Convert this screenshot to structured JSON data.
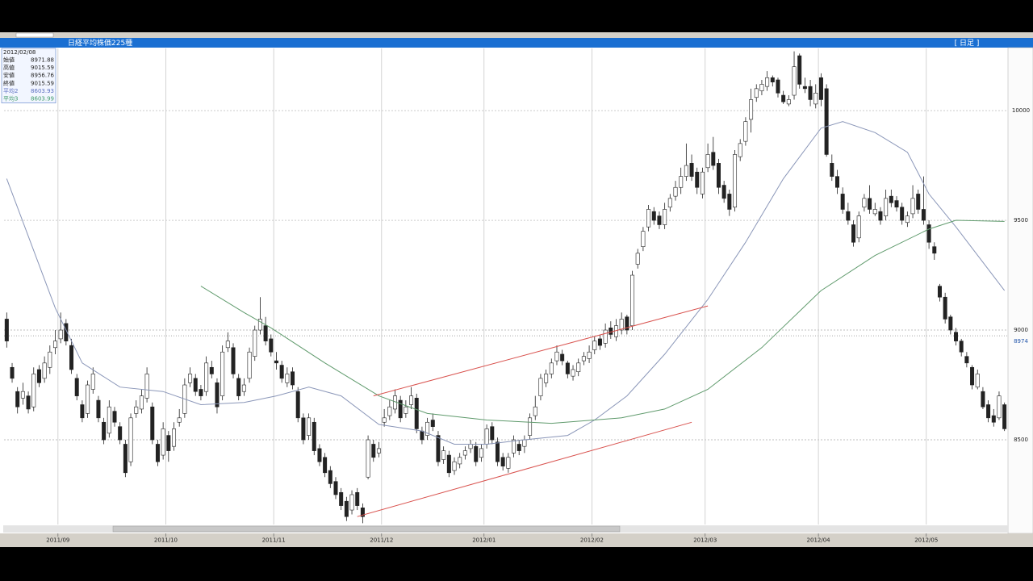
{
  "chart_data": {
    "type": "candlestick",
    "title": "日経平均株価225種",
    "period_label": "[ 日足 ]",
    "categories": [
      null,
      null,
      null,
      null,
      null,
      null,
      null,
      null,
      null,
      null,
      "2011/09",
      null,
      null,
      null,
      null,
      null,
      null,
      null,
      null,
      null,
      null,
      null,
      null,
      null,
      null,
      null,
      null,
      null,
      null,
      null,
      "2011/10",
      null,
      null,
      null,
      null,
      null,
      null,
      null,
      null,
      null,
      null,
      null,
      null,
      null,
      null,
      null,
      null,
      null,
      null,
      null,
      "2011/11",
      null,
      null,
      null,
      null,
      null,
      null,
      null,
      null,
      null,
      null,
      null,
      null,
      null,
      null,
      null,
      null,
      null,
      null,
      null,
      "2011/12",
      null,
      null,
      null,
      null,
      null,
      null,
      null,
      null,
      null,
      null,
      null,
      null,
      null,
      null,
      null,
      null,
      null,
      null,
      "2012/01",
      null,
      null,
      null,
      null,
      null,
      null,
      null,
      null,
      null,
      null,
      null,
      null,
      null,
      null,
      null,
      null,
      null,
      null,
      null,
      "2012/02",
      null,
      null,
      null,
      null,
      null,
      null,
      null,
      null,
      null,
      null,
      null,
      null,
      null,
      null,
      null,
      null,
      null,
      null,
      null,
      null,
      "2012/03",
      null,
      null,
      null,
      null,
      null,
      null,
      null,
      null,
      null,
      null,
      null,
      null,
      null,
      null,
      null,
      null,
      null,
      null,
      null,
      null,
      "2012/04",
      null,
      null,
      null,
      null,
      null,
      null,
      null,
      null,
      null,
      null,
      null,
      null,
      null,
      null,
      null,
      null,
      null,
      null,
      null,
      "2012/05",
      null,
      null,
      null,
      null,
      null,
      null,
      null,
      null,
      null,
      null,
      null,
      null,
      null,
      null
    ],
    "open": [
      9050,
      8830,
      8720,
      8690,
      8700,
      8650,
      8820,
      8780,
      8830,
      8920,
      8960,
      9030,
      8930,
      8780,
      8660,
      8620,
      8730,
      8680,
      8580,
      8530,
      8630,
      8560,
      8480,
      8400,
      8620,
      8640,
      8690,
      8650,
      8480,
      8430,
      8520,
      8470,
      8580,
      8620,
      8760,
      8780,
      8730,
      8720,
      8830,
      8760,
      8700,
      8920,
      8920,
      8780,
      8720,
      8780,
      8880,
      9000,
      9020,
      8960,
      8860,
      8840,
      8760,
      8810,
      8720,
      8600,
      8520,
      8580,
      8460,
      8420,
      8360,
      8310,
      8260,
      8220,
      8180,
      8260,
      8190,
      8330,
      8480,
      8440,
      8580,
      8610,
      8640,
      8680,
      8620,
      8660,
      8690,
      8540,
      8520,
      8590,
      8520,
      8410,
      8430,
      8360,
      8390,
      8430,
      8460,
      8470,
      8420,
      8480,
      8560,
      8490,
      8420,
      8370,
      8440,
      8480,
      8470,
      8520,
      8610,
      8700,
      8760,
      8800,
      8860,
      8890,
      8850,
      8790,
      8810,
      8860,
      8870,
      8910,
      8960,
      8940,
      9010,
      8970,
      9000,
      9060,
      9020,
      9300,
      9380,
      9470,
      9540,
      9520,
      9480,
      9560,
      9610,
      9650,
      9700,
      9760,
      9720,
      9620,
      9740,
      9810,
      9760,
      9660,
      9620,
      9560,
      9790,
      9860,
      9960,
      10060,
      10090,
      10110,
      10150,
      10140,
      10070,
      10030,
      10070,
      10250,
      10110,
      10110,
      10030,
      10150,
      10100,
      9760,
      9700,
      9620,
      9540,
      9480,
      9420,
      9560,
      9600,
      9530,
      9540,
      9520,
      9610,
      9590,
      9560,
      9490,
      9530,
      9620,
      9550,
      9480,
      9380,
      9200,
      9150,
      9060,
      8990,
      8950,
      8880,
      8830,
      8740,
      8720,
      8660,
      8610,
      8600,
      8660
    ],
    "high": [
      9080,
      8850,
      8740,
      8760,
      8720,
      8830,
      8840,
      8880,
      8930,
      9000,
      9080,
      9050,
      8960,
      8800,
      8680,
      8770,
      8830,
      8700,
      8600,
      8680,
      8650,
      8580,
      8500,
      8620,
      8680,
      8730,
      8830,
      8670,
      8500,
      8580,
      8540,
      8580,
      8640,
      8780,
      8830,
      8800,
      8750,
      8880,
      8860,
      8780,
      8930,
      8990,
      8940,
      8800,
      8780,
      8920,
      9020,
      9150,
      9060,
      8980,
      8900,
      8860,
      8830,
      8830,
      8740,
      8620,
      8620,
      8600,
      8480,
      8440,
      8380,
      8330,
      8280,
      8240,
      8270,
      8280,
      8210,
      8520,
      8500,
      8490,
      8640,
      8680,
      8730,
      8700,
      8680,
      8740,
      8710,
      8560,
      8600,
      8620,
      8540,
      8470,
      8450,
      8420,
      8440,
      8470,
      8500,
      8490,
      8480,
      8570,
      8580,
      8510,
      8440,
      8440,
      8520,
      8500,
      8520,
      8620,
      8700,
      8800,
      8820,
      8870,
      8930,
      8910,
      8860,
      8840,
      8870,
      8900,
      8930,
      8970,
      8980,
      9030,
      9040,
      9050,
      9080,
      9070,
      9270,
      9370,
      9470,
      9570,
      9560,
      9540,
      9580,
      9620,
      9680,
      9740,
      9850,
      9800,
      9740,
      9740,
      9850,
      9880,
      9780,
      9680,
      9640,
      9820,
      9870,
      9970,
      10100,
      10120,
      10140,
      10180,
      10160,
      10150,
      10090,
      10070,
      10270,
      10260,
      10150,
      10140,
      10120,
      10170,
      10120,
      9800,
      9730,
      9650,
      9580,
      9500,
      9540,
      9620,
      9660,
      9580,
      9560,
      9640,
      9640,
      9610,
      9580,
      9540,
      9660,
      9640,
      9700,
      9500,
      9400,
      9210,
      9170,
      9070,
      9010,
      8960,
      8900,
      8840,
      8820,
      8740,
      8680,
      8640,
      8720,
      8670
    ],
    "low": [
      8920,
      8760,
      8620,
      8660,
      8620,
      8630,
      8740,
      8760,
      8800,
      8890,
      8940,
      8930,
      8800,
      8680,
      8580,
      8600,
      8710,
      8580,
      8480,
      8510,
      8560,
      8480,
      8330,
      8380,
      8600,
      8620,
      8670,
      8480,
      8380,
      8410,
      8400,
      8450,
      8560,
      8600,
      8740,
      8700,
      8680,
      8700,
      8780,
      8620,
      8680,
      8900,
      8780,
      8680,
      8700,
      8760,
      8860,
      8980,
      8930,
      8880,
      8820,
      8760,
      8740,
      8730,
      8580,
      8480,
      8500,
      8430,
      8380,
      8330,
      8280,
      8230,
      8180,
      8130,
      8160,
      8180,
      8120,
      8320,
      8400,
      8420,
      8560,
      8590,
      8620,
      8580,
      8600,
      8640,
      8530,
      8480,
      8500,
      8540,
      8380,
      8390,
      8330,
      8340,
      8370,
      8410,
      8440,
      8380,
      8400,
      8460,
      8480,
      8380,
      8360,
      8350,
      8420,
      8430,
      8440,
      8500,
      8590,
      8680,
      8740,
      8780,
      8840,
      8840,
      8780,
      8770,
      8790,
      8840,
      8850,
      8890,
      8910,
      8920,
      8960,
      8950,
      8980,
      8980,
      9000,
      9280,
      9360,
      9450,
      9480,
      9460,
      9460,
      9540,
      9590,
      9620,
      9680,
      9680,
      9620,
      9600,
      9720,
      9730,
      9620,
      9580,
      9520,
      9540,
      9770,
      9840,
      9900,
      10040,
      10070,
      10090,
      10110,
      10060,
      10030,
      10020,
      10050,
      10100,
      10080,
      10020,
      10010,
      10020,
      9790,
      9680,
      9620,
      9530,
      9480,
      9380,
      9400,
      9540,
      9530,
      9520,
      9480,
      9500,
      9560,
      9540,
      9480,
      9470,
      9510,
      9530,
      9480,
      9370,
      9320,
      9130,
      9030,
      8980,
      8930,
      8880,
      8830,
      8730,
      8730,
      8640,
      8580,
      8560,
      8590,
      8540
    ],
    "close": [
      8950,
      8780,
      8650,
      8720,
      8640,
      8800,
      8760,
      8850,
      8900,
      8950,
      9000,
      8950,
      8820,
      8700,
      8600,
      8750,
      8800,
      8600,
      8500,
      8650,
      8580,
      8500,
      8350,
      8600,
      8650,
      8700,
      8800,
      8500,
      8400,
      8550,
      8450,
      8550,
      8600,
      8750,
      8800,
      8720,
      8700,
      8850,
      8800,
      8650,
      8900,
      8950,
      8800,
      8700,
      8750,
      8900,
      9000,
      9050,
      8950,
      8900,
      8850,
      8780,
      8800,
      8750,
      8600,
      8500,
      8600,
      8450,
      8400,
      8350,
      8300,
      8250,
      8200,
      8150,
      8250,
      8200,
      8150,
      8500,
      8420,
      8460,
      8600,
      8650,
      8700,
      8600,
      8650,
      8700,
      8550,
      8500,
      8580,
      8560,
      8400,
      8450,
      8350,
      8400,
      8420,
      8450,
      8480,
      8400,
      8460,
      8550,
      8500,
      8400,
      8380,
      8420,
      8500,
      8450,
      8500,
      8600,
      8650,
      8780,
      8800,
      8850,
      8900,
      8860,
      8800,
      8820,
      8850,
      8880,
      8900,
      8950,
      8930,
      9000,
      8980,
      9020,
      9050,
      9000,
      9250,
      9350,
      9450,
      9550,
      9500,
      9480,
      9550,
      9600,
      9650,
      9700,
      9750,
      9700,
      9650,
      9720,
      9800,
      9750,
      9650,
      9600,
      9550,
      9800,
      9850,
      9950,
      10050,
      10100,
      10120,
      10150,
      10130,
      10080,
      10040,
      10050,
      10200,
      10120,
      10100,
      10050,
      10080,
      10050,
      9800,
      9700,
      9650,
      9550,
      9500,
      9400,
      9520,
      9600,
      9550,
      9550,
      9500,
      9600,
      9580,
      9560,
      9500,
      9520,
      9600,
      9550,
      9500,
      9400,
      9350,
      9150,
      9050,
      9000,
      8950,
      8900,
      8850,
      8750,
      8800,
      8650,
      8600,
      8580,
      8700,
      8550
    ],
    "up_color": "#ffffff",
    "down_color": "#222222",
    "moving_averages": [
      {
        "color": "#8a96b8",
        "x": [
          0,
          9,
          14,
          21,
          29,
          36,
          44,
          50,
          56,
          62,
          69,
          77,
          83,
          89,
          96,
          104,
          109,
          115,
          122,
          130,
          137,
          144,
          151,
          155,
          161,
          167,
          171,
          176,
          185
        ],
        "values": [
          9690,
          9100,
          8850,
          8740,
          8720,
          8660,
          8670,
          8700,
          8740,
          8700,
          8570,
          8540,
          8480,
          8480,
          8500,
          8520,
          8590,
          8700,
          8890,
          9140,
          9400,
          9690,
          9920,
          9950,
          9900,
          9810,
          9620,
          9470,
          9180
        ]
      },
      {
        "color": "#5f9a6c",
        "x": [
          36,
          44,
          49,
          59,
          69,
          78,
          89,
          101,
          114,
          122,
          130,
          140,
          151,
          161,
          171,
          176,
          185
        ],
        "values": [
          9200,
          9080,
          9010,
          8850,
          8700,
          8620,
          8590,
          8575,
          8600,
          8640,
          8730,
          8920,
          9180,
          9340,
          9460,
          9500,
          9495
        ]
      }
    ],
    "trendlines": [
      {
        "color": "#d9534f",
        "x": [
          68,
          130
        ],
        "values": [
          8700,
          9110
        ]
      },
      {
        "color": "#d9534f",
        "x": [
          65,
          127
        ],
        "values": [
          8150,
          8580
        ]
      }
    ],
    "ylim": [
      8114,
      10276
    ],
    "yticks": [
      8500,
      9000,
      9500,
      10000
    ],
    "price_marker": 8974,
    "grid": true,
    "info_panel": {
      "date": "2012/02/08",
      "rows": [
        {
          "label": "始値",
          "value": 8971.88
        },
        {
          "label": "高値",
          "value": 9015.59
        },
        {
          "label": "安値",
          "value": 8956.76
        },
        {
          "label": "終値",
          "value": 9015.59
        },
        {
          "label": "平均2",
          "value": 8603.93,
          "color": "#5b6fc0"
        },
        {
          "label": "平均3",
          "value": 8603.99,
          "color": "#3f9a6a"
        }
      ]
    }
  }
}
